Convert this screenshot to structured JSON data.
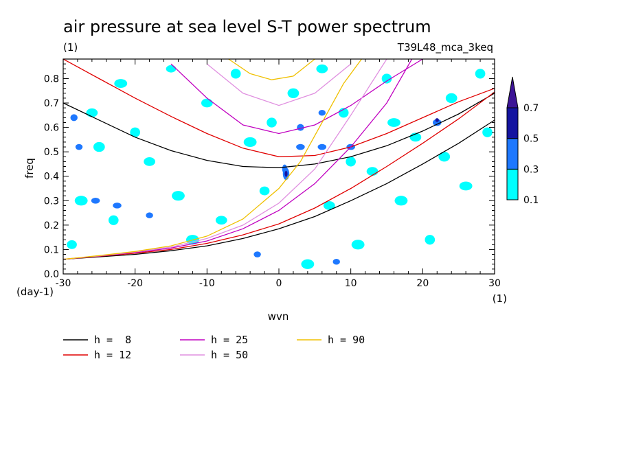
{
  "chart_data": {
    "type": "heatmap",
    "title": "air pressure at sea level S-T power spectrum",
    "subtitle_left": "(1)",
    "subtitle_right": "T39L48_mca_3keq",
    "xlabel": "wvn",
    "ylabel": "freq",
    "x_unit": "(1)",
    "y_unit": "(day-1)",
    "xlim": [
      -30,
      30
    ],
    "ylim": [
      0,
      0.88
    ],
    "x_ticks": [
      -30,
      -20,
      -10,
      0,
      10,
      20,
      30
    ],
    "y_ticks": [
      0.0,
      0.1,
      0.2,
      0.3,
      0.4,
      0.5,
      0.6,
      0.7,
      0.8
    ],
    "x_tick_labels": [
      "-30",
      "-20",
      "-10",
      "0",
      "10",
      "20",
      "30"
    ],
    "y_tick_labels": [
      "0.0",
      "0.1",
      "0.2",
      "0.3",
      "0.4",
      "0.5",
      "0.6",
      "0.7",
      "0.8"
    ],
    "colorbar": {
      "levels": [
        0.1,
        0.3,
        0.5,
        0.7
      ],
      "labels": [
        "0.1",
        "0.3",
        "0.5",
        "0.7"
      ],
      "colors": [
        "#00ffff",
        "#1e78ff",
        "#1414a0",
        "#3c1496"
      ]
    },
    "series": [
      {
        "name": "h =  8",
        "color": "#000000"
      },
      {
        "name": "h = 12",
        "color": "#e00000"
      },
      {
        "name": "h = 25",
        "color": "#c000c0"
      },
      {
        "name": "h = 50",
        "color": "#e090e0"
      },
      {
        "name": "h = 90",
        "color": "#f0c000"
      }
    ],
    "curves": [
      {
        "series": 0,
        "kind": "upper",
        "points": [
          [
            -30,
            0.7
          ],
          [
            -25,
            0.63
          ],
          [
            -20,
            0.56
          ],
          [
            -15,
            0.505
          ],
          [
            -10,
            0.465
          ],
          [
            -5,
            0.44
          ],
          [
            0,
            0.435
          ],
          [
            5,
            0.45
          ],
          [
            10,
            0.48
          ],
          [
            15,
            0.525
          ],
          [
            20,
            0.585
          ],
          [
            25,
            0.655
          ],
          [
            30,
            0.74
          ]
        ]
      },
      {
        "series": 0,
        "kind": "lower",
        "points": [
          [
            -30,
            0.06
          ],
          [
            -25,
            0.07
          ],
          [
            -20,
            0.08
          ],
          [
            -15,
            0.095
          ],
          [
            -10,
            0.115
          ],
          [
            -5,
            0.145
          ],
          [
            0,
            0.185
          ],
          [
            5,
            0.235
          ],
          [
            10,
            0.3
          ],
          [
            15,
            0.37
          ],
          [
            20,
            0.45
          ],
          [
            25,
            0.535
          ],
          [
            30,
            0.63
          ]
        ]
      },
      {
        "series": 1,
        "kind": "upper",
        "points": [
          [
            -30,
            0.88
          ],
          [
            -25,
            0.8
          ],
          [
            -20,
            0.72
          ],
          [
            -15,
            0.645
          ],
          [
            -10,
            0.575
          ],
          [
            -5,
            0.515
          ],
          [
            0,
            0.48
          ],
          [
            5,
            0.485
          ],
          [
            10,
            0.52
          ],
          [
            15,
            0.575
          ],
          [
            20,
            0.64
          ],
          [
            25,
            0.705
          ],
          [
            30,
            0.76
          ]
        ]
      },
      {
        "series": 1,
        "kind": "lower",
        "points": [
          [
            -30,
            0.06
          ],
          [
            -25,
            0.072
          ],
          [
            -20,
            0.085
          ],
          [
            -15,
            0.1
          ],
          [
            -10,
            0.125
          ],
          [
            -5,
            0.16
          ],
          [
            0,
            0.205
          ],
          [
            5,
            0.27
          ],
          [
            10,
            0.35
          ],
          [
            15,
            0.44
          ],
          [
            20,
            0.535
          ],
          [
            25,
            0.635
          ],
          [
            30,
            0.745
          ]
        ]
      },
      {
        "series": 2,
        "kind": "upper",
        "points": [
          [
            -15,
            0.86
          ],
          [
            -10,
            0.72
          ],
          [
            -5,
            0.61
          ],
          [
            0,
            0.575
          ],
          [
            5,
            0.61
          ],
          [
            10,
            0.69
          ],
          [
            15,
            0.79
          ],
          [
            20,
            0.88
          ]
        ]
      },
      {
        "series": 2,
        "kind": "lower",
        "points": [
          [
            -30,
            0.06
          ],
          [
            -25,
            0.073
          ],
          [
            -20,
            0.088
          ],
          [
            -15,
            0.106
          ],
          [
            -10,
            0.135
          ],
          [
            -5,
            0.185
          ],
          [
            0,
            0.26
          ],
          [
            5,
            0.37
          ],
          [
            10,
            0.52
          ],
          [
            15,
            0.7
          ],
          [
            18.5,
            0.88
          ]
        ]
      },
      {
        "series": 3,
        "kind": "upper",
        "points": [
          [
            -10,
            0.86
          ],
          [
            -5,
            0.74
          ],
          [
            0,
            0.69
          ],
          [
            5,
            0.74
          ],
          [
            10,
            0.86
          ]
        ]
      },
      {
        "series": 3,
        "kind": "lower",
        "points": [
          [
            -30,
            0.06
          ],
          [
            -25,
            0.074
          ],
          [
            -20,
            0.09
          ],
          [
            -15,
            0.11
          ],
          [
            -10,
            0.145
          ],
          [
            -5,
            0.2
          ],
          [
            0,
            0.29
          ],
          [
            5,
            0.43
          ],
          [
            10,
            0.65
          ],
          [
            15,
            0.88
          ]
        ]
      },
      {
        "series": 4,
        "kind": "upper",
        "points": [
          [
            -7,
            0.88
          ],
          [
            -4,
            0.82
          ],
          [
            -1,
            0.795
          ],
          [
            2,
            0.81
          ],
          [
            5,
            0.88
          ]
        ]
      },
      {
        "series": 4,
        "kind": "lower",
        "points": [
          [
            -30,
            0.06
          ],
          [
            -25,
            0.075
          ],
          [
            -20,
            0.092
          ],
          [
            -15,
            0.115
          ],
          [
            -10,
            0.155
          ],
          [
            -5,
            0.225
          ],
          [
            0,
            0.35
          ],
          [
            3,
            0.46
          ],
          [
            6,
            0.62
          ],
          [
            9,
            0.78
          ],
          [
            11.5,
            0.88
          ]
        ]
      }
    ],
    "patches": [
      [
        -28.8,
        0.12,
        0.7,
        0.018,
        0
      ],
      [
        -27.5,
        0.3,
        0.9,
        0.02,
        0
      ],
      [
        -25,
        0.52,
        0.8,
        0.02,
        0
      ],
      [
        -22,
        0.78,
        0.9,
        0.018,
        0
      ],
      [
        -20,
        0.58,
        0.7,
        0.02,
        0
      ],
      [
        -18,
        0.46,
        0.8,
        0.018,
        0
      ],
      [
        -15,
        0.84,
        0.7,
        0.015,
        0
      ],
      [
        -12,
        0.14,
        0.9,
        0.02,
        0
      ],
      [
        -10,
        0.7,
        0.8,
        0.018,
        0
      ],
      [
        -6,
        0.82,
        0.7,
        0.02,
        0
      ],
      [
        -4,
        0.54,
        0.9,
        0.02,
        0
      ],
      [
        -2,
        0.34,
        0.7,
        0.018,
        0
      ],
      [
        2,
        0.74,
        0.8,
        0.02,
        0
      ],
      [
        4,
        0.04,
        0.9,
        0.02,
        0
      ],
      [
        7,
        0.28,
        0.8,
        0.018,
        0
      ],
      [
        9,
        0.66,
        0.7,
        0.02,
        0
      ],
      [
        11,
        0.12,
        0.9,
        0.02,
        0
      ],
      [
        13,
        0.42,
        0.8,
        0.018,
        0
      ],
      [
        15,
        0.8,
        0.7,
        0.02,
        0
      ],
      [
        17,
        0.3,
        0.9,
        0.02,
        0
      ],
      [
        19,
        0.56,
        0.8,
        0.018,
        0
      ],
      [
        21,
        0.14,
        0.7,
        0.02,
        0
      ],
      [
        24,
        0.72,
        0.8,
        0.02,
        0
      ],
      [
        26,
        0.36,
        0.9,
        0.018,
        0
      ],
      [
        28,
        0.82,
        0.7,
        0.02,
        0
      ],
      [
        -26,
        0.66,
        0.8,
        0.018,
        0
      ],
      [
        -23,
        0.22,
        0.7,
        0.02,
        0
      ],
      [
        -14,
        0.32,
        0.9,
        0.02,
        0
      ],
      [
        -8,
        0.22,
        0.8,
        0.018,
        0
      ],
      [
        -1,
        0.62,
        0.7,
        0.02,
        0
      ],
      [
        6,
        0.84,
        0.8,
        0.018,
        0
      ],
      [
        10,
        0.46,
        0.7,
        0.02,
        0
      ],
      [
        16,
        0.62,
        0.9,
        0.018,
        0
      ],
      [
        23,
        0.48,
        0.8,
        0.02,
        0
      ],
      [
        29,
        0.58,
        0.7,
        0.02,
        0
      ],
      [
        -28.5,
        0.64,
        0.5,
        0.014,
        1
      ],
      [
        -27.8,
        0.52,
        0.5,
        0.012,
        1
      ],
      [
        -25.5,
        0.3,
        0.6,
        0.012,
        1
      ],
      [
        -22.5,
        0.28,
        0.6,
        0.012,
        1
      ],
      [
        -18,
        0.24,
        0.5,
        0.012,
        1
      ],
      [
        1,
        0.41,
        0.45,
        0.025,
        1
      ],
      [
        0.8,
        0.43,
        0.35,
        0.018,
        1
      ],
      [
        3,
        0.6,
        0.5,
        0.014,
        1
      ],
      [
        3,
        0.52,
        0.6,
        0.012,
        1
      ],
      [
        6,
        0.52,
        0.6,
        0.012,
        1
      ],
      [
        6,
        0.66,
        0.5,
        0.012,
        1
      ],
      [
        10,
        0.52,
        0.6,
        0.012,
        1
      ],
      [
        22,
        0.62,
        0.6,
        0.014,
        1
      ],
      [
        8,
        0.05,
        0.5,
        0.012,
        1
      ],
      [
        -3,
        0.08,
        0.5,
        0.012,
        1
      ],
      [
        1,
        0.41,
        0.2,
        0.012,
        2
      ],
      [
        22,
        0.63,
        0.25,
        0.008,
        2
      ]
    ]
  }
}
